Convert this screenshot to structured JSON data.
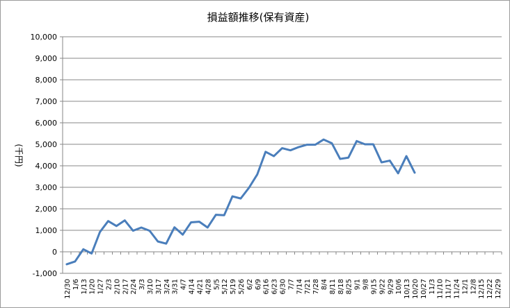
{
  "chart_data": {
    "type": "line",
    "title": "損益額推移(保有資産)",
    "ylabel": "(千円)",
    "xlabel": "",
    "ylim": [
      -1000,
      10000
    ],
    "y_ticks": [
      -1000,
      0,
      1000,
      2000,
      3000,
      4000,
      5000,
      6000,
      7000,
      8000,
      9000,
      10000
    ],
    "grid": true,
    "legend": "none",
    "line_color": "#4a7ebb",
    "categories": [
      "12/30",
      "1/6",
      "1/13",
      "1/20",
      "1/27",
      "2/3",
      "2/10",
      "2/17",
      "2/24",
      "3/3",
      "3/10",
      "3/17",
      "3/24",
      "3/31",
      "4/7",
      "4/14",
      "4/21",
      "4/28",
      "5/5",
      "5/12",
      "5/19",
      "5/26",
      "6/2",
      "6/9",
      "6/16",
      "6/23",
      "6/30",
      "7/7",
      "7/14",
      "7/21",
      "7/28",
      "8/4",
      "8/11",
      "8/18",
      "8/25",
      "9/1",
      "9/8",
      "9/15",
      "9/22",
      "9/29",
      "10/6",
      "10/13",
      "10/20",
      "10/27",
      "11/3",
      "11/10",
      "11/17",
      "11/24",
      "12/1",
      "12/8",
      "12/15",
      "12/22",
      "12/29"
    ],
    "series": [
      {
        "values": [
          -580,
          -450,
          120,
          -80,
          920,
          1430,
          1200,
          1460,
          980,
          1130,
          980,
          480,
          380,
          1140,
          800,
          1370,
          1400,
          1130,
          1720,
          1700,
          2580,
          2480,
          2980,
          3600,
          4650,
          4450,
          4820,
          4720,
          4870,
          4980,
          4980,
          5220,
          5050,
          4320,
          4380,
          5150,
          5000,
          5000,
          4160,
          4240,
          3650,
          4450,
          3680,
          null,
          null,
          null,
          null,
          null,
          null,
          null,
          null,
          null,
          null
        ]
      }
    ]
  }
}
